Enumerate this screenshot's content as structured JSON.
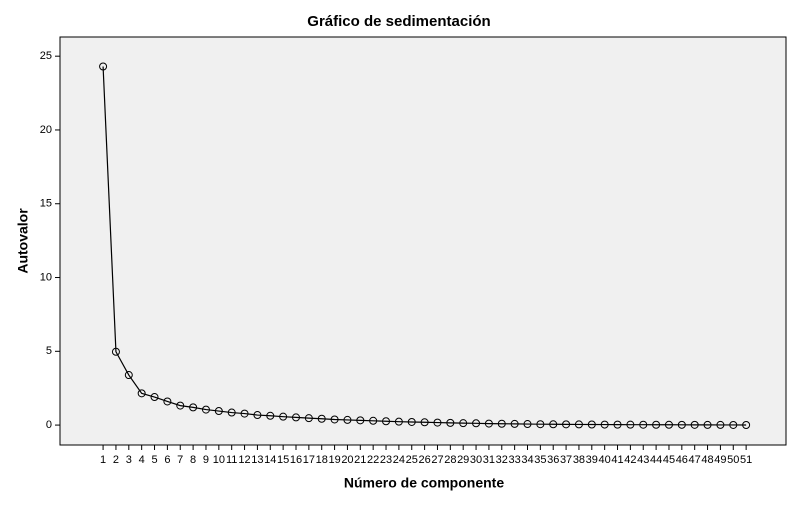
{
  "chart_data": {
    "type": "line",
    "title": "Gráfico de sedimentación",
    "x_label": "Número de componente",
    "y_label": "Autovalor",
    "x": [
      1,
      2,
      3,
      4,
      5,
      6,
      7,
      8,
      9,
      10,
      11,
      12,
      13,
      14,
      15,
      16,
      17,
      18,
      19,
      20,
      21,
      22,
      23,
      24,
      25,
      26,
      27,
      28,
      29,
      30,
      31,
      32,
      33,
      34,
      35,
      36,
      37,
      38,
      39,
      40,
      41,
      42,
      43,
      44,
      45,
      46,
      47,
      48,
      49,
      50,
      51
    ],
    "series": [
      {
        "name": "Autovalor",
        "color": "#000000",
        "values": [
          24.3,
          4.97,
          3.39,
          2.15,
          1.9,
          1.6,
          1.32,
          1.2,
          1.05,
          0.95,
          0.85,
          0.78,
          0.68,
          0.63,
          0.57,
          0.52,
          0.47,
          0.43,
          0.38,
          0.35,
          0.32,
          0.29,
          0.26,
          0.23,
          0.21,
          0.19,
          0.17,
          0.15,
          0.13,
          0.12,
          0.1,
          0.09,
          0.08,
          0.07,
          0.06,
          0.055,
          0.05,
          0.045,
          0.04,
          0.035,
          0.03,
          0.028,
          0.025,
          0.022,
          0.02,
          0.018,
          0.015,
          0.012,
          0.01,
          0.008,
          0.005
        ]
      }
    ],
    "xlim": [
      -2.35,
      54.1
    ],
    "xticks": [
      1,
      2,
      3,
      4,
      5,
      6,
      7,
      8,
      9,
      10,
      11,
      12,
      13,
      14,
      15,
      16,
      17,
      18,
      19,
      20,
      21,
      22,
      23,
      24,
      25,
      26,
      27,
      28,
      29,
      30,
      31,
      32,
      33,
      34,
      35,
      36,
      37,
      38,
      39,
      40,
      41,
      42,
      43,
      44,
      45,
      46,
      47,
      48,
      49,
      50,
      51
    ],
    "ylim": [
      -1.35,
      26.3
    ],
    "yticks": [
      0,
      5,
      10,
      15,
      20,
      25
    ],
    "plot_background": "#f0f0f0"
  }
}
